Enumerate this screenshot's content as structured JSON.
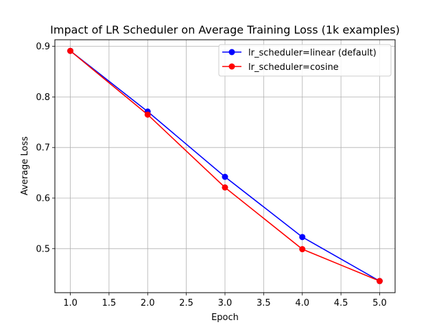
{
  "chart_data": {
    "type": "line",
    "title": "Impact of LR Scheduler on Average Training Loss (1k examples)",
    "xlabel": "Epoch",
    "ylabel": "Average Loss",
    "xlim": [
      0.8,
      5.2
    ],
    "ylim": [
      0.413,
      0.913
    ],
    "xticks": [
      1.0,
      1.5,
      2.0,
      2.5,
      3.0,
      3.5,
      4.0,
      4.5,
      5.0
    ],
    "xtick_labels": [
      "1.0",
      "1.5",
      "2.0",
      "2.5",
      "3.0",
      "3.5",
      "4.0",
      "4.5",
      "5.0"
    ],
    "yticks": [
      0.5,
      0.6,
      0.7,
      0.8,
      0.9
    ],
    "ytick_labels": [
      "0.5",
      "0.6",
      "0.7",
      "0.8",
      "0.9"
    ],
    "grid": true,
    "legend_position": "top-right",
    "x": [
      1,
      2,
      3,
      4,
      5
    ],
    "series": [
      {
        "name": "lr_scheduler=linear (default)",
        "color": "#0000ff",
        "marker": "circle",
        "values": [
          0.891,
          0.771,
          0.642,
          0.523,
          0.436
        ]
      },
      {
        "name": "lr_scheduler=cosine",
        "color": "#ff0000",
        "marker": "circle",
        "values": [
          0.891,
          0.765,
          0.621,
          0.499,
          0.436
        ]
      }
    ]
  }
}
